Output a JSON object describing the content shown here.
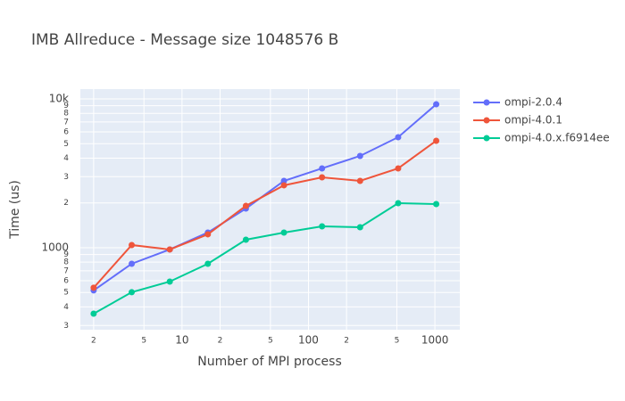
{
  "chart_data": {
    "type": "line",
    "title": "IMB Allreduce - Message size 1048576 B",
    "x_label": "Number of MPI process",
    "y_label": "Time (us)",
    "x": [
      2,
      4,
      8,
      16,
      32,
      64,
      128,
      256,
      512,
      1024
    ],
    "series": [
      {
        "name": "ompi-2.0.4",
        "color": "#636efa",
        "values": [
          516,
          780,
          973,
          1264,
          1834,
          2812,
          3412,
          4139,
          5530,
          9200
        ]
      },
      {
        "name": "ompi-4.0.1",
        "color": "#ef553b",
        "values": [
          538,
          1042,
          973,
          1230,
          1911,
          2626,
          2972,
          2812,
          3412,
          5233
        ]
      },
      {
        "name": "ompi-4.0.x.f6914ee",
        "color": "#00cc96",
        "values": [
          360,
          502,
          592,
          780,
          1132,
          1264,
          1392,
          1373,
          1992,
          1964
        ]
      }
    ],
    "x_log": true,
    "y_log": true,
    "xlim": [
      1.57,
      1574
    ],
    "ylim": [
      281,
      11640
    ],
    "xticks": [
      2,
      5,
      10,
      {
        "value": 20,
        "label": "2"
      },
      {
        "value": 50,
        "label": "5"
      },
      100,
      {
        "value": 200,
        "label": "2"
      },
      {
        "value": 500,
        "label": "5"
      },
      1000
    ],
    "yticks": [
      {
        "value": 300,
        "label": "3"
      },
      {
        "value": 400,
        "label": "4"
      },
      {
        "value": 500,
        "label": "5"
      },
      {
        "value": 600,
        "label": "6"
      },
      {
        "value": 700,
        "label": "7"
      },
      {
        "value": 800,
        "label": "8"
      },
      {
        "value": 900,
        "label": "9"
      },
      1000,
      {
        "value": 2000,
        "label": "2"
      },
      {
        "value": 3000,
        "label": "3"
      },
      {
        "value": 4000,
        "label": "4"
      },
      {
        "value": 5000,
        "label": "5"
      },
      {
        "value": 6000,
        "label": "6"
      },
      {
        "value": 7000,
        "label": "7"
      },
      {
        "value": 8000,
        "label": "8"
      },
      {
        "value": 9000,
        "label": "9"
      },
      {
        "value": 10000,
        "label": "10k"
      }
    ],
    "grid": true,
    "legend_position": "right"
  }
}
